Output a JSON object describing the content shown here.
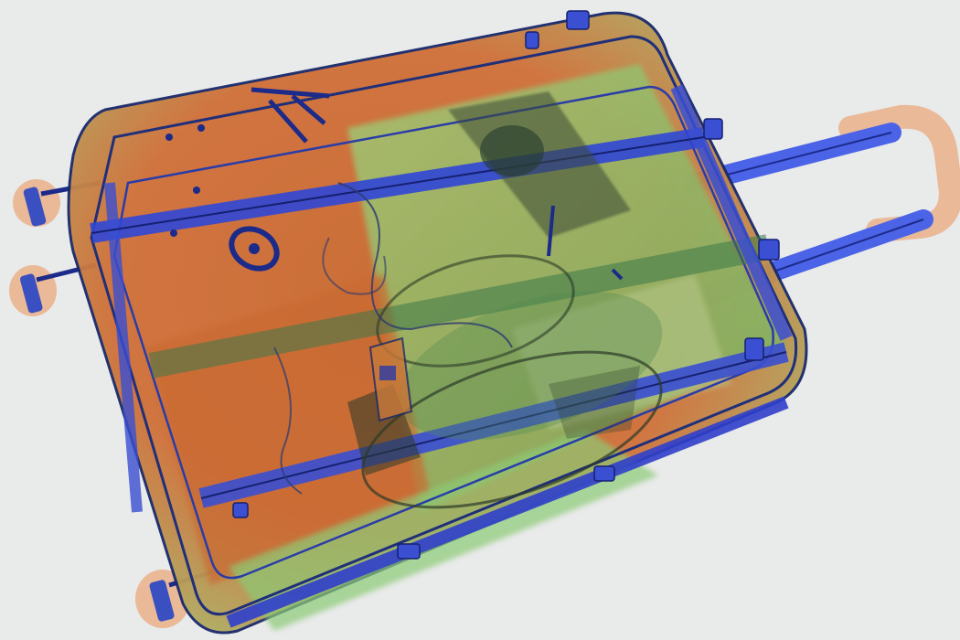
{
  "scene": {
    "background_color": "#e9eaea",
    "palette": {
      "organic": "#d9682c",
      "organic_light": "#eab08a",
      "mixed": "#8fcf73",
      "mixed_dark": "#4f8a50",
      "metal": "#2d3fd6",
      "metal_light": "#5d77ee",
      "outline": "#1a2a6a",
      "dense": "#2c3a28"
    }
  }
}
